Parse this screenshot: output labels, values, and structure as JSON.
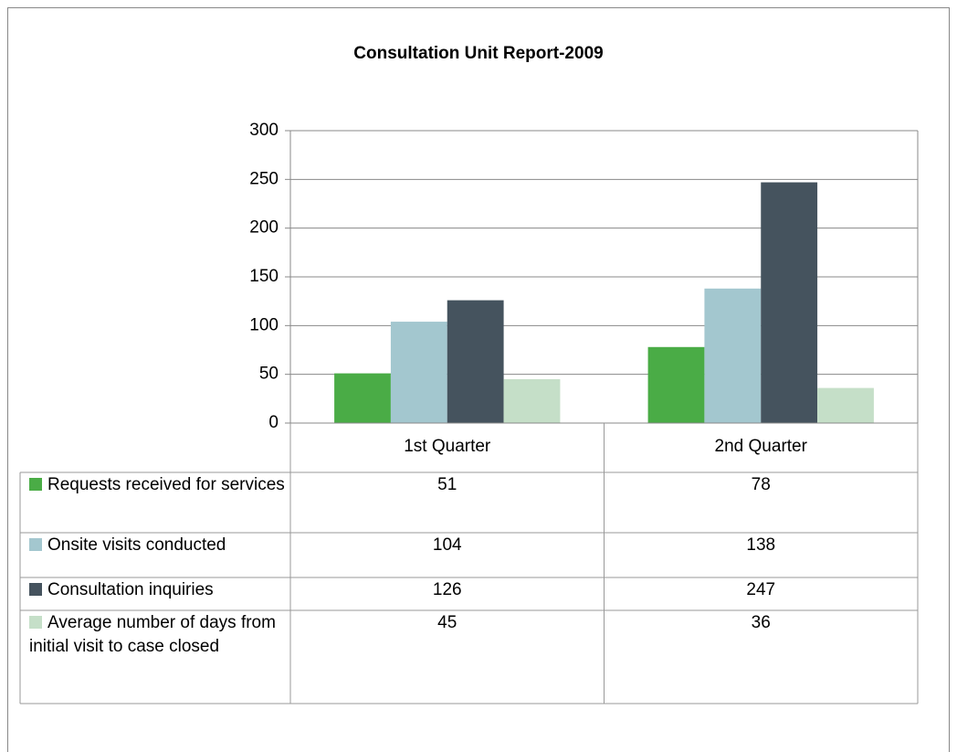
{
  "chart_data": {
    "type": "bar",
    "title": "Consultation Unit Report-2009",
    "categories": [
      "1st Quarter",
      "2nd Quarter"
    ],
    "series": [
      {
        "name": "Requests received for services",
        "color": "#4aac46",
        "values": [
          51,
          78
        ]
      },
      {
        "name": "Onsite visits conducted",
        "color": "#a3c7cf",
        "values": [
          104,
          138
        ]
      },
      {
        "name": "Consultation inquiries",
        "color": "#45535e",
        "values": [
          126,
          247
        ]
      },
      {
        "name": "Average number of days from initial visit to case closed",
        "color": "#c5dfc8",
        "values": [
          45,
          36
        ]
      }
    ],
    "ylim": [
      0,
      300
    ],
    "yticks": [
      0,
      50,
      100,
      150,
      200,
      250,
      300
    ],
    "grid": true
  }
}
